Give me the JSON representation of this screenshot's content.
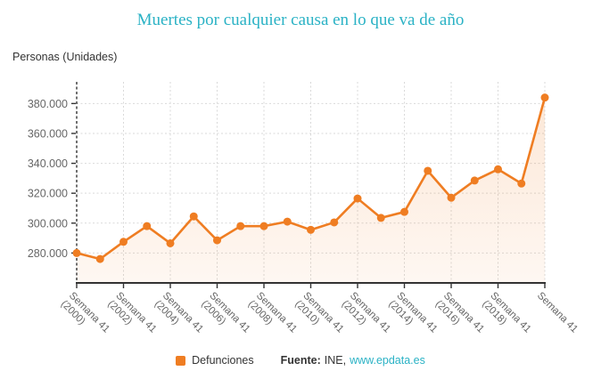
{
  "title": "Muertes por cualquier causa en lo que va de año",
  "axis_unit_label": "Personas (Unidades)",
  "legend": {
    "series_label": "Defunciones"
  },
  "footer": {
    "source_label": "Fuente:",
    "source_name": "INE,",
    "source_link": "www.epdata.es"
  },
  "colors": {
    "accent_orange": "#ef7d22",
    "title_teal": "#2ab2c5",
    "link_teal": "#2ab2c5",
    "text_dark": "#333333",
    "text_gray": "#666666",
    "gridline": "#d9d9d9",
    "axis_dark": "#333333",
    "area_fill_top": "rgba(239,125,34,0.18)",
    "area_fill_bottom": "rgba(239,125,34,0.06)"
  },
  "chart_data": {
    "type": "line",
    "area_fill": true,
    "grid": "dashed",
    "legend_position": "bottom",
    "title": "Muertes por cualquier causa en lo que va de año",
    "ylabel": "Personas (Unidades)",
    "xlabel": "",
    "ylim": [
      260000,
      394500
    ],
    "yticks": [
      280000,
      300000,
      320000,
      340000,
      360000,
      380000
    ],
    "ytick_labels": [
      "280.000",
      "300.000",
      "320.000",
      "340.000",
      "360.000",
      "380.000"
    ],
    "series": [
      {
        "name": "Defunciones",
        "x_years": [
          2000,
          2001,
          2002,
          2003,
          2004,
          2005,
          2006,
          2007,
          2008,
          2009,
          2010,
          2011,
          2012,
          2013,
          2014,
          2015,
          2016,
          2017,
          2018,
          2019,
          2020
        ],
        "values": [
          280000,
          276000,
          287500,
          298000,
          286500,
          304500,
          288500,
          298000,
          298000,
          301000,
          295500,
          300500,
          316500,
          303500,
          307500,
          335000,
          317000,
          328500,
          336000,
          326500,
          384000
        ]
      }
    ],
    "xtick_labels": [
      {
        "pos": 0,
        "line1": "Semana 41",
        "line2": "(2000)"
      },
      {
        "pos": 2,
        "line1": "Semana 41",
        "line2": "(2002)"
      },
      {
        "pos": 4,
        "line1": "Semana 41",
        "line2": "(2004)"
      },
      {
        "pos": 6,
        "line1": "Semana 41",
        "line2": "(2006)"
      },
      {
        "pos": 8,
        "line1": "Semana 41",
        "line2": "(2008)"
      },
      {
        "pos": 10,
        "line1": "Semana 41",
        "line2": "(2010)"
      },
      {
        "pos": 12,
        "line1": "Semana 41",
        "line2": "(2012)"
      },
      {
        "pos": 14,
        "line1": "Semana 41",
        "line2": "(2014)"
      },
      {
        "pos": 16,
        "line1": "Semana 41",
        "line2": "(2016)"
      },
      {
        "pos": 18,
        "line1": "Semana 41",
        "line2": "(2018)"
      },
      {
        "pos": 20,
        "line1": "Semana 41",
        "line2": ""
      }
    ]
  }
}
